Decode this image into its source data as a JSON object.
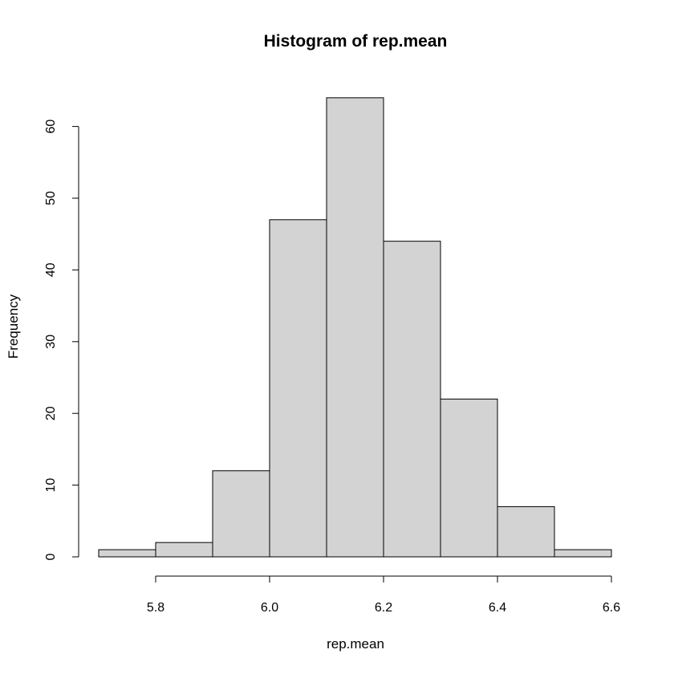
{
  "chart_data": {
    "type": "bar",
    "title": "Histogram of rep.mean",
    "xlabel": "rep.mean",
    "ylabel": "Frequency",
    "bins": [
      {
        "start": 5.7,
        "end": 5.8,
        "count": 1
      },
      {
        "start": 5.8,
        "end": 5.9,
        "count": 2
      },
      {
        "start": 5.9,
        "end": 6.0,
        "count": 12
      },
      {
        "start": 6.0,
        "end": 6.1,
        "count": 47
      },
      {
        "start": 6.1,
        "end": 6.2,
        "count": 64
      },
      {
        "start": 6.2,
        "end": 6.3,
        "count": 44
      },
      {
        "start": 6.3,
        "end": 6.4,
        "count": 22
      },
      {
        "start": 6.4,
        "end": 6.5,
        "count": 7
      },
      {
        "start": 6.5,
        "end": 6.6,
        "count": 1
      }
    ],
    "x_ticks": [
      "5.8",
      "6.0",
      "6.2",
      "6.4",
      "6.6"
    ],
    "y_ticks": [
      "0",
      "10",
      "20",
      "30",
      "40",
      "50",
      "60"
    ],
    "xlim": [
      5.7,
      6.6
    ],
    "ylim": [
      0,
      64
    ],
    "bar_color": "#d3d3d3",
    "grid": false
  }
}
